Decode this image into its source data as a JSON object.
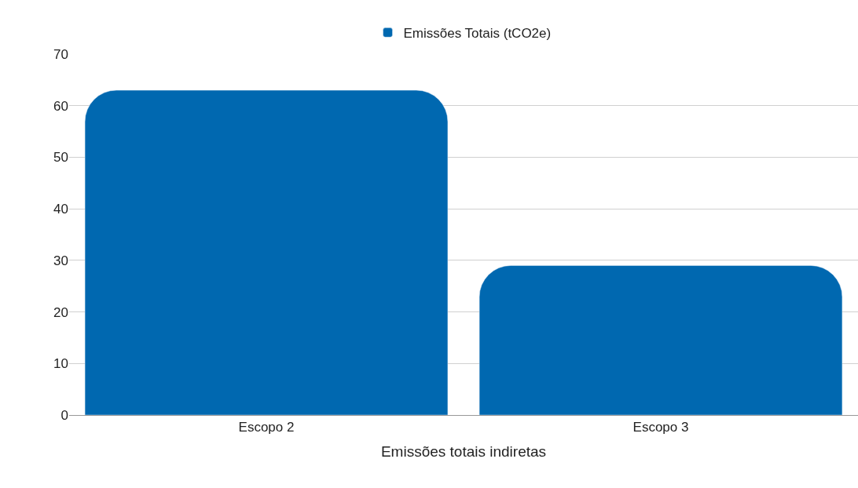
{
  "chart_data": {
    "type": "bar",
    "xlabel": "Emissões totais indiretas",
    "categories": [
      "Escopo 2",
      "Escopo 3"
    ],
    "series": [
      {
        "name": "Emissões Totais (tCO2e)",
        "color": "#0068b0",
        "values": [
          63,
          29
        ]
      }
    ],
    "ylim": [
      0,
      70
    ],
    "yticks": [
      0,
      10,
      20,
      30,
      40,
      50,
      60,
      70
    ],
    "grid": "y",
    "legend": "top"
  }
}
